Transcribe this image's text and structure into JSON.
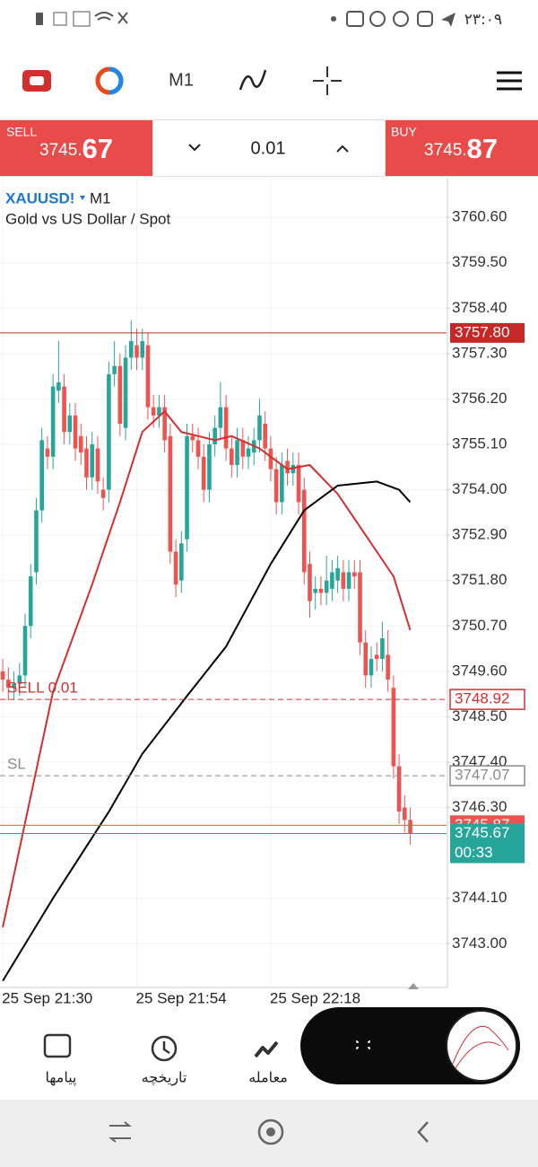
{
  "status_bar": {
    "time": "۲۳:۰۹"
  },
  "toolbar": {
    "timeframe": "M1"
  },
  "trade_panel": {
    "sell": {
      "label": "SELL",
      "price_head": "3745.",
      "price_tail": "67"
    },
    "lot": "0.01",
    "buy": {
      "label": "BUY",
      "price_head": "3745.",
      "price_tail": "87"
    }
  },
  "chart_data": {
    "type": "candlestick",
    "symbol": "XAUUSD!",
    "timeframe": "M1",
    "title": "Gold vs US Dollar / Spot",
    "up_color": "#26a69a",
    "down_color": "#ef5350",
    "grid": true,
    "xlim": [
      -0.5,
      79.5
    ],
    "xticks": [
      {
        "value": 0,
        "label": "25 Sep 21:30"
      },
      {
        "value": 24,
        "label": "25 Sep 21:54"
      },
      {
        "value": 48,
        "label": "25 Sep 22:18"
      }
    ],
    "ylim": [
      3741.94,
      3761.56
    ],
    "yticks": [
      {
        "value": 3760.6,
        "label": "3760.60"
      },
      {
        "value": 3759.5,
        "label": "3759.50"
      },
      {
        "value": 3758.4,
        "label": "3758.40"
      },
      {
        "value": 3757.3,
        "label": "3757.30"
      },
      {
        "value": 3756.2,
        "label": "3756.20"
      },
      {
        "value": 3755.1,
        "label": "3755.10"
      },
      {
        "value": 3754,
        "label": "3754.00"
      },
      {
        "value": 3752.9,
        "label": "3752.90"
      },
      {
        "value": 3751.8,
        "label": "3751.80"
      },
      {
        "value": 3750.7,
        "label": "3750.70"
      },
      {
        "value": 3749.6,
        "label": "3749.60"
      },
      {
        "value": 3748.5,
        "label": "3748.50"
      },
      {
        "value": 3747.4,
        "label": "3747.40"
      },
      {
        "value": 3746.3,
        "label": "3746.30"
      },
      {
        "value": 3744.1,
        "label": "3744.10"
      },
      {
        "value": 3743,
        "label": "3743.00"
      }
    ],
    "open": [
      3749.6,
      3749.4,
      3749.2,
      3749.3,
      3749.5,
      3750.7,
      3752.0,
      3753.5,
      3755.0,
      3754.8,
      3756.4,
      3756.5,
      3755.4,
      3755.8,
      3755.3,
      3755.0,
      3754.3,
      3755.0,
      3754.0,
      3754.0,
      3756.8,
      3757.0,
      3755.5,
      3757.2,
      3757.5,
      3757.2,
      3757.5,
      3756.0,
      3755.8,
      3756.0,
      3755.3,
      3752.5,
      3751.8,
      3752.8,
      3755.3,
      3755.2,
      3754.8,
      3754.0,
      3755.1,
      3755.5,
      3756.0,
      3755.0,
      3754.6,
      3755.2,
      3754.8,
      3754.9,
      3755.2,
      3755.6,
      3755.0,
      3754.5,
      3753.7,
      3754.7,
      3754.4,
      3754.6,
      3754.0,
      3752.2,
      3751.5,
      3751.6,
      3751.5,
      3751.6,
      3751.8,
      3752.0,
      3751.6,
      3752.0,
      3752.0,
      3750.3,
      3749.5,
      3750.0,
      3749.9,
      3750.0,
      3749.2,
      3747.3,
      3746.3,
      3746.0
    ],
    "high": [
      3749.9,
      3749.7,
      3749.6,
      3749.8,
      3751.0,
      3752.2,
      3753.8,
      3755.5,
      3755.3,
      3756.8,
      3757.6,
      3756.8,
      3756.1,
      3756.1,
      3755.6,
      3755.3,
      3755.4,
      3755.3,
      3754.3,
      3757.1,
      3757.6,
      3757.3,
      3757.5,
      3758.1,
      3757.9,
      3757.9,
      3757.8,
      3756.3,
      3756.3,
      3756.3,
      3755.6,
      3752.8,
      3753.0,
      3755.6,
      3755.6,
      3755.5,
      3755.1,
      3755.4,
      3755.8,
      3756.6,
      3756.3,
      3755.3,
      3755.5,
      3755.5,
      3755.3,
      3755.5,
      3756.2,
      3755.9,
      3755.3,
      3754.8,
      3754.9,
      3755.0,
      3754.9,
      3754.9,
      3754.3,
      3752.5,
      3751.9,
      3751.9,
      3752.4,
      3752.3,
      3752.4,
      3752.3,
      3752.3,
      3752.3,
      3752.3,
      3750.6,
      3750.2,
      3750.3,
      3750.8,
      3750.6,
      3749.5,
      3747.6,
      3746.6,
      3746.3
    ],
    "low": [
      3749.1,
      3748.9,
      3748.9,
      3749.0,
      3749.2,
      3750.4,
      3751.7,
      3753.2,
      3754.5,
      3754.5,
      3756.1,
      3755.1,
      3755.1,
      3754.7,
      3754.6,
      3754.0,
      3754.0,
      3753.9,
      3753.5,
      3753.7,
      3756.5,
      3755.3,
      3755.2,
      3756.9,
      3756.9,
      3756.9,
      3755.7,
      3755.5,
      3755.5,
      3754.9,
      3752.2,
      3751.4,
      3751.5,
      3752.5,
      3754.9,
      3754.5,
      3753.7,
      3753.7,
      3754.8,
      3755.2,
      3754.7,
      3754.3,
      3754.3,
      3754.5,
      3754.5,
      3754.6,
      3754.9,
      3754.7,
      3754.2,
      3753.4,
      3753.4,
      3754.1,
      3754.1,
      3753.4,
      3751.7,
      3750.9,
      3751.1,
      3751.2,
      3751.2,
      3751.3,
      3751.5,
      3751.3,
      3751.3,
      3751.6,
      3750.0,
      3749.2,
      3749.2,
      3749.6,
      3749.6,
      3749.1,
      3747.0,
      3745.9,
      3745.7,
      3745.4
    ],
    "close": [
      3749.4,
      3749.2,
      3749.3,
      3749.5,
      3750.7,
      3751.9,
      3753.5,
      3755.2,
      3754.8,
      3756.5,
      3756.6,
      3755.4,
      3755.8,
      3755.0,
      3754.9,
      3754.3,
      3755.1,
      3754.2,
      3753.8,
      3756.8,
      3757.0,
      3755.6,
      3757.2,
      3757.6,
      3757.2,
      3757.6,
      3756.0,
      3755.8,
      3756.0,
      3755.2,
      3752.5,
      3751.7,
      3752.7,
      3755.3,
      3755.2,
      3754.8,
      3754.0,
      3755.1,
      3755.5,
      3756.0,
      3755.0,
      3754.6,
      3755.2,
      3754.8,
      3755.0,
      3755.2,
      3755.8,
      3755.0,
      3754.5,
      3753.7,
      3754.6,
      3754.4,
      3754.6,
      3753.7,
      3752.0,
      3751.3,
      3751.6,
      3751.5,
      3751.8,
      3752.0,
      3752.1,
      3751.6,
      3752.0,
      3751.9,
      3750.3,
      3749.5,
      3749.9,
      3749.9,
      3750.4,
      3749.4,
      3747.3,
      3746.2,
      3746.0,
      3745.67
    ],
    "moving_averages": [
      {
        "color": "#d32f2f",
        "x": [
          0,
          9,
          16,
          21,
          25,
          29,
          32,
          38,
          41,
          46,
          51,
          55,
          60,
          65,
          70,
          73
        ],
        "values": [
          3743.4,
          3749.1,
          3751.7,
          3753.7,
          3755.4,
          3755.9,
          3755.4,
          3755.2,
          3755.3,
          3755.0,
          3754.5,
          3754.6,
          3753.9,
          3752.9,
          3751.9,
          3750.6
        ]
      },
      {
        "color": "#000000",
        "x": [
          0,
          9,
          19,
          25,
          33,
          40,
          48,
          54,
          60,
          67,
          71,
          73
        ],
        "values": [
          3742.1,
          3744.1,
          3746.2,
          3747.6,
          3749.0,
          3750.2,
          3752.2,
          3753.5,
          3754.1,
          3754.2,
          3754.0,
          3753.7
        ]
      }
    ],
    "price_lines": [
      {
        "value": 3757.8,
        "label": "3757.80",
        "color": "#c62828",
        "style": "solid",
        "label_style": "filled"
      },
      {
        "name": "SELL 0.01",
        "value": 3748.92,
        "label": "3748.92",
        "color": "#d32f2f",
        "style": "dashed",
        "label_style": "outline"
      },
      {
        "name": "SL",
        "value": 3747.07,
        "label": "3747.07",
        "color": "#8a8a8a",
        "style": "dashed",
        "label_style": "outline"
      },
      {
        "value": 3745.87,
        "label": "3745.87",
        "color": "#ef5350",
        "style": "solid",
        "label_style": "filled"
      },
      {
        "value": 3745.67,
        "label": "3745.67",
        "color": "#26a69a",
        "style": "solid",
        "label_style": "filled",
        "timer": "00:33"
      }
    ]
  },
  "bottom_nav": {
    "items": [
      "پیامها",
      "تاریخچه",
      "معامله"
    ]
  }
}
